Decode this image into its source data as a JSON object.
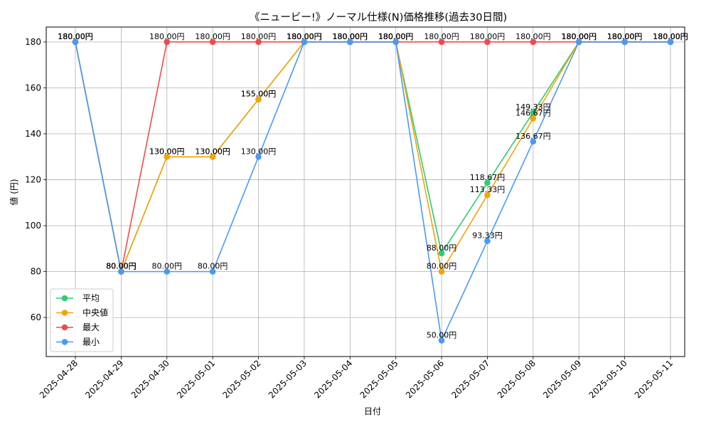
{
  "chart_data": {
    "type": "line",
    "title": "《ニュービー!》ノーマル仕様(N)価格推移(過去30日間)",
    "xlabel": "日付",
    "ylabel": "値 (円)",
    "ylim": [
      43,
      186.5
    ],
    "yticks": [
      60,
      80,
      100,
      120,
      140,
      160,
      180
    ],
    "grid": true,
    "legend_position": "lower-left",
    "categories": [
      "2025-04-28",
      "2025-04-29",
      "2025-04-30",
      "2025-05-01",
      "2025-05-02",
      "2025-05-03",
      "2025-05-04",
      "2025-05-05",
      "2025-05-06",
      "2025-05-07",
      "2025-05-08",
      "2025-05-09",
      "2025-05-10",
      "2025-05-11"
    ],
    "series": [
      {
        "name": "平均",
        "color": "#2ecc71",
        "values": [
          180,
          80,
          130,
          130,
          155,
          180,
          180,
          180,
          88,
          118.67,
          149.33,
          180,
          180,
          180
        ],
        "labels": [
          "180.00円",
          "80.00円",
          "130.00円",
          "130.00円",
          "155.00円",
          "180.00円",
          "180.00円",
          "180.00円",
          "88.00円",
          "118.67円",
          "149.33円",
          "180.00円",
          "180.00円",
          "180.00円"
        ]
      },
      {
        "name": "中央値",
        "color": "#f5a30a",
        "values": [
          180,
          80,
          130,
          130,
          155,
          180,
          180,
          180,
          80,
          113.33,
          146.67,
          180,
          180,
          180
        ],
        "labels": [
          "180.00円",
          "80.00円",
          "130.00円",
          "130.00円",
          "155.00円",
          "180.00円",
          "180.00円",
          "180.00円",
          "80.00円",
          "113.33円",
          "146.67円",
          "180.00円",
          "180.00円",
          "180.00円"
        ]
      },
      {
        "name": "最大",
        "color": "#ef4b4b",
        "values": [
          180,
          80,
          180,
          180,
          180,
          180,
          180,
          180,
          180,
          180,
          180,
          180,
          180,
          180
        ],
        "labels": [
          "180.00円",
          "80.00円",
          "180.00円",
          "180.00円",
          "180.00円",
          "180.00円",
          "180.00円",
          "180.00円",
          "180.00円",
          "180.00円",
          "180.00円",
          "180.00円",
          "180.00円",
          "180.00円"
        ]
      },
      {
        "name": "最小",
        "color": "#4a9af5",
        "values": [
          180,
          80,
          80,
          80,
          130,
          180,
          180,
          180,
          50,
          93.33,
          136.67,
          180,
          180,
          180
        ],
        "labels": [
          "180.00円",
          "80.00円",
          "80.00円",
          "80.00円",
          "130.00円",
          "180.00円",
          "180.00円",
          "180.00円",
          "50.00円",
          "93.33円",
          "136.67円",
          "180.00円",
          "180.00円",
          "180.00円"
        ]
      }
    ]
  }
}
